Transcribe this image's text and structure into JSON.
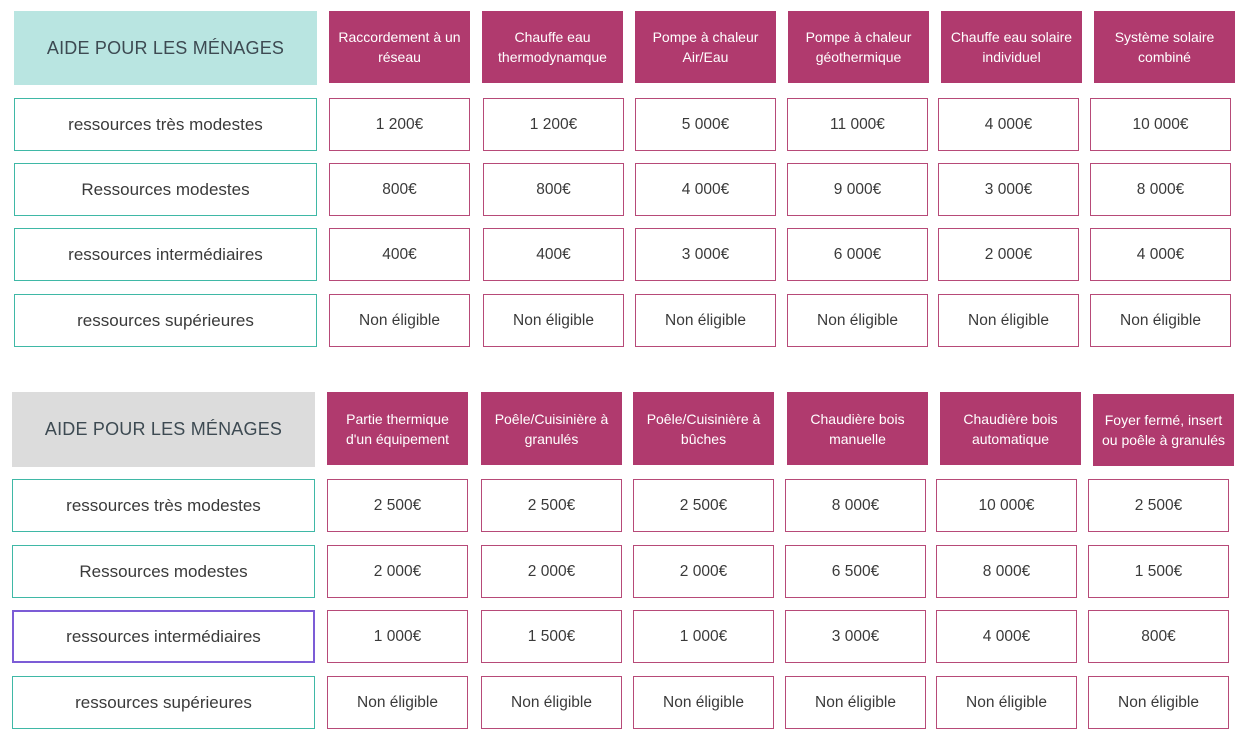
{
  "tables": [
    {
      "title": "AIDE POUR LES MÉNAGES",
      "headers": [
        "Raccordement à un réseau",
        "Chauffe eau thermodynamque",
        "Pompe à chaleur Air/Eau",
        "Pompe à chaleur géothermique",
        "Chauffe eau solaire individuel",
        "Système solaire combiné"
      ],
      "rows": [
        {
          "label": "ressources très modestes",
          "values": [
            "1 200€",
            "1 200€",
            "5 000€",
            "11 000€",
            "4 000€",
            "10 000€"
          ]
        },
        {
          "label": "Ressources modestes",
          "values": [
            "800€",
            "800€",
            "4 000€",
            "9 000€",
            "3 000€",
            "8 000€"
          ]
        },
        {
          "label": "ressources intermédiaires",
          "values": [
            "400€",
            "400€",
            "3 000€",
            "6 000€",
            "2 000€",
            "4 000€"
          ]
        },
        {
          "label": "ressources supérieures",
          "values": [
            "Non éligible",
            "Non éligible",
            "Non éligible",
            "Non éligible",
            "Non éligible",
            "Non éligible"
          ]
        }
      ]
    },
    {
      "title": "AIDE POUR LES MÉNAGES",
      "headers": [
        "Partie thermique d'un équipement",
        "Poêle/Cuisinière à granulés",
        "Poêle/Cuisinière à bûches",
        "Chaudière bois manuelle",
        "Chaudière bois automatique",
        "Foyer fermé, insert ou poêle à granulés"
      ],
      "rows": [
        {
          "label": "ressources très modestes",
          "values": [
            "2 500€",
            "2 500€",
            "2 500€",
            "8 000€",
            "10 000€",
            "2 500€"
          ]
        },
        {
          "label": "Ressources modestes",
          "values": [
            "2 000€",
            "2 000€",
            "2 000€",
            "6 500€",
            "8 000€",
            "1 500€"
          ]
        },
        {
          "label": "ressources intermédiaires",
          "values": [
            "1 000€",
            "1 500€",
            "1 000€",
            "3 000€",
            "4 000€",
            "800€"
          ]
        },
        {
          "label": "ressources supérieures",
          "values": [
            "Non éligible",
            "Non éligible",
            "Non éligible",
            "Non éligible",
            "Non éligible",
            "Non éligible"
          ]
        }
      ]
    }
  ],
  "colors": {
    "header_bg": "#b03a6e",
    "title1_bg": "#b9e5e1",
    "title2_bg": "#dcdcdc",
    "label_border": "#3fb8a6",
    "value_border": "#b74a78",
    "selected_border": "#7c5cd6"
  },
  "selected_cell": {
    "table": 1,
    "row": 2
  }
}
